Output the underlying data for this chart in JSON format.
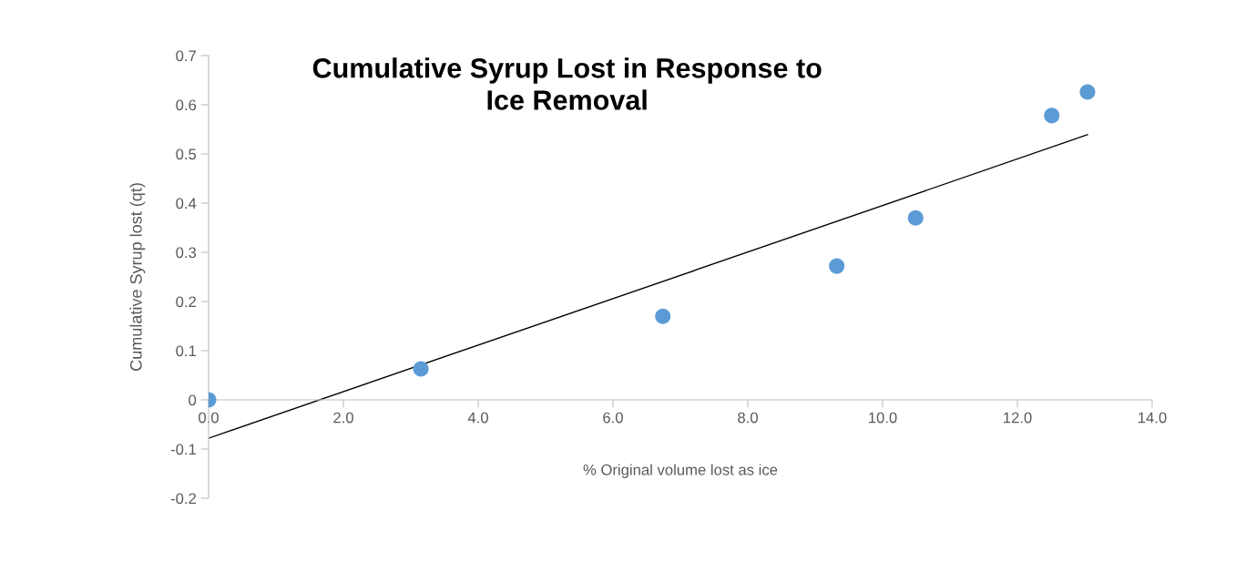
{
  "chart_data": {
    "type": "scatter",
    "title": "Cumulative Syrup Lost in Response to\nIce Removal",
    "xlabel": "% Original volume lost as ice",
    "ylabel": "Cumulative Syrup lost (qt)",
    "series": [
      {
        "color": "#5b9bd5",
        "x": [
          0,
          3.15,
          6.74,
          9.32,
          10.49,
          12.51,
          13.04
        ],
        "values": [
          0,
          0.063,
          0.17,
          0.272,
          0.37,
          0.578,
          0.626
        ],
        "marker": "circle"
      },
      {
        "type": "line",
        "color": "#000000",
        "x": [
          0,
          13.04
        ],
        "values": [
          -0.078,
          0.539
        ],
        "line_style": "solid",
        "marker": "none"
      }
    ],
    "xlim": [
      0,
      14
    ],
    "ylim": [
      -0.2,
      0.7
    ],
    "xticks": [
      {
        "value": 0,
        "label": "0.0"
      },
      {
        "value": 2,
        "label": "2.0"
      },
      {
        "value": 4,
        "label": "4.0"
      },
      {
        "value": 6,
        "label": "6.0"
      },
      {
        "value": 8,
        "label": "8.0"
      },
      {
        "value": 10,
        "label": "10.0"
      },
      {
        "value": 12,
        "label": "12.0"
      },
      {
        "value": 14,
        "label": "14.0"
      }
    ],
    "yticks": [
      -0.2,
      -0.1,
      0,
      0.1,
      0.2,
      0.3,
      0.4,
      0.5,
      0.6,
      0.7
    ],
    "grid": false
  }
}
